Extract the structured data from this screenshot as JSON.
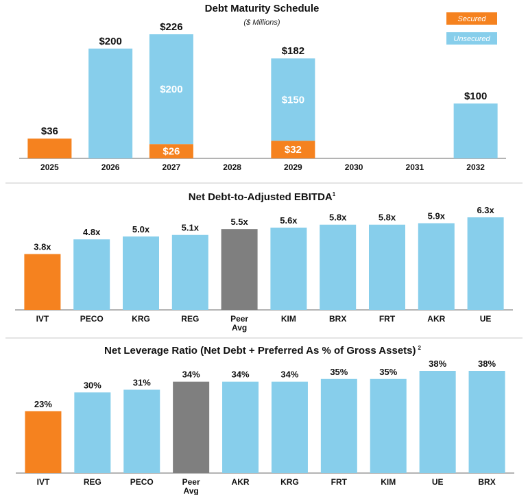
{
  "colors": {
    "secured": "#F5821F",
    "unsecured": "#87CEEB",
    "ivt": "#F5821F",
    "peer": "#7F7F7F",
    "peer_bar": "#87CEEB",
    "axis": "#9A9A9A"
  },
  "chart_data": [
    {
      "type": "bar",
      "stacked": true,
      "title": "Debt Maturity Schedule",
      "subtitle": "($ Millions)",
      "categories": [
        "2025",
        "2026",
        "2027",
        "2028",
        "2029",
        "2030",
        "2031",
        "2032"
      ],
      "series": [
        {
          "name": "Secured",
          "values": [
            36,
            0,
            26,
            0,
            32,
            0,
            0,
            0
          ]
        },
        {
          "name": "Unsecured",
          "values": [
            0,
            200,
            200,
            0,
            150,
            0,
            0,
            100
          ]
        }
      ],
      "total_labels": [
        "$36",
        "$200",
        "$226",
        "",
        "$182",
        "",
        "",
        "$100"
      ],
      "segment_labels": {
        "Secured": [
          "",
          "",
          "$26",
          "",
          "$32",
          "",
          "",
          ""
        ],
        "Unsecured": [
          "",
          "",
          "$200",
          "",
          "$150",
          "",
          "",
          ""
        ]
      },
      "ylim": [
        0,
        226
      ],
      "legend": "top-right",
      "grid": false
    },
    {
      "type": "bar",
      "title": "Net Debt-to-Adjusted EBITDA",
      "title_sup": "1",
      "categories": [
        "IVT",
        "PECO",
        "KRG",
        "REG",
        "Peer Avg",
        "KIM",
        "BRX",
        "FRT",
        "AKR",
        "UE"
      ],
      "values": [
        3.8,
        4.8,
        5.0,
        5.1,
        5.5,
        5.6,
        5.8,
        5.8,
        5.9,
        6.3
      ],
      "labels": [
        "3.8x",
        "4.8x",
        "5.0x",
        "5.1x",
        "5.5x",
        "5.6x",
        "5.8x",
        "5.8x",
        "5.9x",
        "6.3x"
      ],
      "ylim": [
        0,
        6.3
      ],
      "highlight": {
        "IVT": "ivt",
        "Peer Avg": "peer"
      },
      "grid": false
    },
    {
      "type": "bar",
      "title": "Net Leverage Ratio (Net Debt + Preferred As % of Gross Assets)",
      "title_sup": "2",
      "categories": [
        "IVT",
        "REG",
        "PECO",
        "Peer Avg",
        "AKR",
        "KRG",
        "FRT",
        "KIM",
        "UE",
        "BRX"
      ],
      "values": [
        23,
        30,
        31,
        34,
        34,
        34,
        35,
        35,
        38,
        38
      ],
      "labels": [
        "23%",
        "30%",
        "31%",
        "34%",
        "34%",
        "34%",
        "35%",
        "35%",
        "38%",
        "38%"
      ],
      "ylim": [
        0,
        38
      ],
      "highlight": {
        "IVT": "ivt",
        "Peer Avg": "peer"
      },
      "grid": false
    }
  ]
}
